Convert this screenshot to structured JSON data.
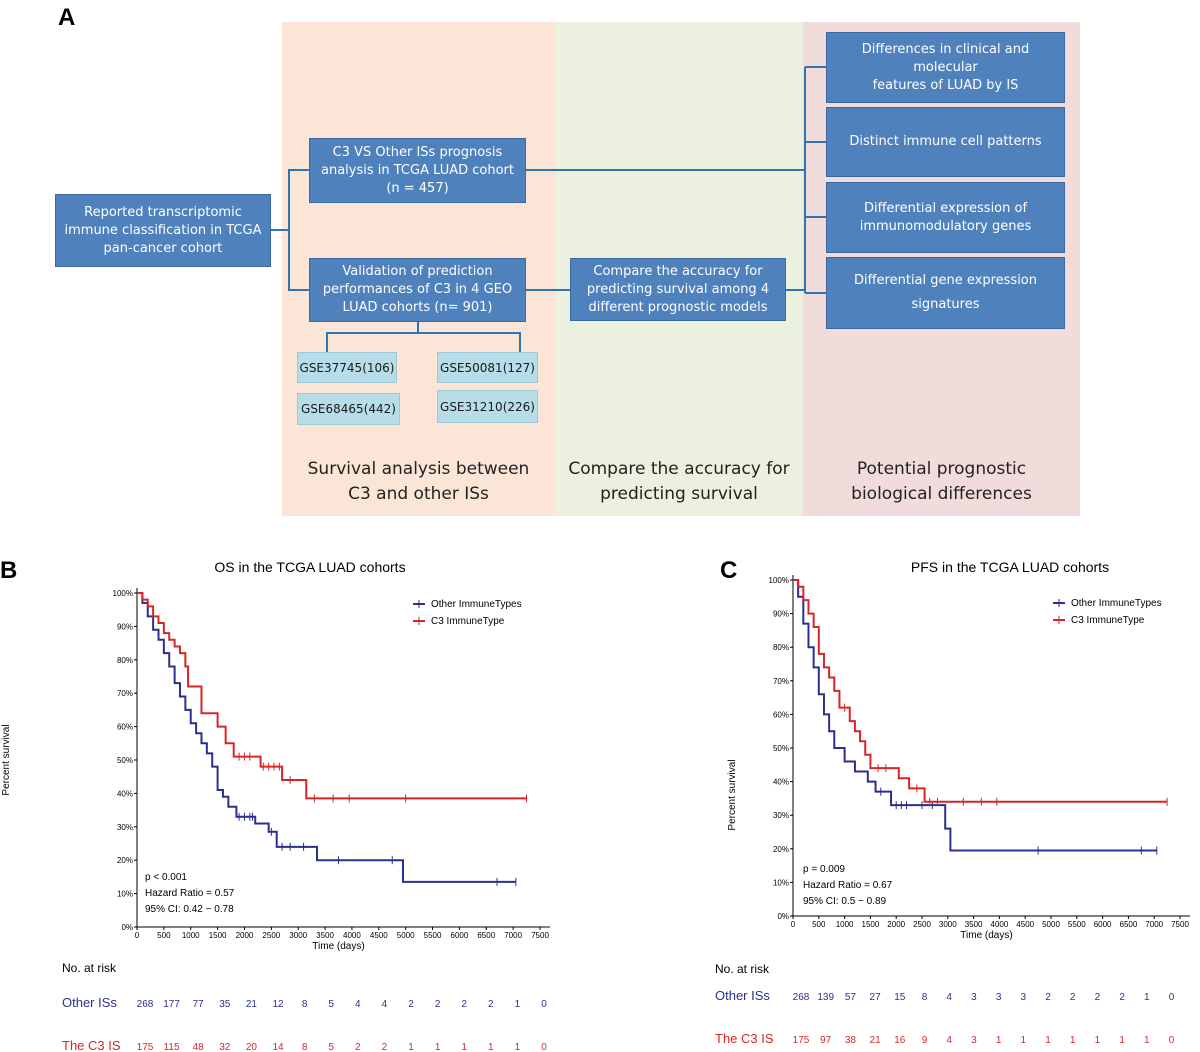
{
  "panel_a": {
    "letter": "A",
    "colors": {
      "survival_band": "#fbe5d6",
      "compare_band": "#ebf1de",
      "biology_band": "#f2dcdb",
      "box": "#4f81bd",
      "cohort_box": "#b7dee8",
      "connector": "#2e75b6"
    },
    "source_box": "Reported transcriptomic\nimmune classification in TCGA\npan-cancer cohort",
    "tcga_box": "C3 VS Other ISs prognosis\nanalysis in TCGA LUAD cohort\n(n = 457)",
    "validation_box": "Validation of prediction\nperformances of C3 in 4 GEO\nLUAD cohorts (n= 901)",
    "compare_box": "Compare the accuracy for\npredicting survival among 4\ndifferent prognostic models",
    "cohorts": [
      "GSE37745(106)",
      "GSE50081(127)",
      "GSE68465(442)",
      "GSE31210(226)"
    ],
    "outcomes": [
      "Differences in clinical and molecular\nfeatures of LUAD by IS",
      "Distinct immune cell patterns",
      "Differential expression of\nimmunomodulatory genes",
      "Differential gene expression\nsignatures"
    ],
    "band_labels": [
      "Survival analysis between\nC3 and other ISs",
      "Compare the accuracy for\npredicting survival",
      "Potential prognostic\nbiological differences"
    ]
  },
  "chart_data": [
    {
      "type": "line",
      "letter": "B",
      "title": "OS in the TCGA LUAD cohorts",
      "xlabel": "Time (days)",
      "ylabel": "Percent survival",
      "xlim": [
        0,
        7500
      ],
      "ylim": [
        0,
        100
      ],
      "xticks": [
        "0",
        "500",
        "1000",
        "1500",
        "2000",
        "2500",
        "3000",
        "3500",
        "4000",
        "4500",
        "5000",
        "5500",
        "6000",
        "6500",
        "7000",
        "7500"
      ],
      "yticks": [
        "0%",
        "10%",
        "20%",
        "30%",
        "40%",
        "50%",
        "60%",
        "70%",
        "80%",
        "90%",
        "100%"
      ],
      "legend": "top-right",
      "stats": [
        "p < 0.001",
        "Hazard Ratio = 0.57",
        "95% CI: 0.42 − 0.78"
      ],
      "series": [
        {
          "name": "Other ImmuneTypes",
          "color": "#2b2f8f",
          "steps": [
            [
              0,
              100
            ],
            [
              100,
              97
            ],
            [
              200,
              93
            ],
            [
              300,
              89
            ],
            [
              400,
              86
            ],
            [
              500,
              82
            ],
            [
              600,
              78
            ],
            [
              700,
              73
            ],
            [
              800,
              69
            ],
            [
              900,
              65
            ],
            [
              1000,
              61
            ],
            [
              1100,
              58
            ],
            [
              1200,
              55
            ],
            [
              1300,
              52
            ],
            [
              1400,
              48
            ],
            [
              1500,
              41
            ],
            [
              1600,
              39
            ],
            [
              1700,
              36
            ],
            [
              1850,
              33
            ],
            [
              2200,
              31
            ],
            [
              2450,
              28.5
            ],
            [
              2600,
              24
            ],
            [
              3350,
              20
            ],
            [
              4950,
              13.5
            ],
            [
              7050,
              13.5
            ]
          ],
          "censored": [
            1900,
            2000,
            2100,
            2150,
            2500,
            2700,
            2850,
            3100,
            3750,
            4750,
            6700,
            7050
          ]
        },
        {
          "name": "C3 ImmuneType",
          "color": "#d62728",
          "steps": [
            [
              0,
              100
            ],
            [
              100,
              98
            ],
            [
              200,
              96
            ],
            [
              300,
              93
            ],
            [
              400,
              91
            ],
            [
              500,
              88
            ],
            [
              600,
              86
            ],
            [
              700,
              84
            ],
            [
              800,
              82
            ],
            [
              900,
              78
            ],
            [
              950,
              72
            ],
            [
              1200,
              64
            ],
            [
              1500,
              60
            ],
            [
              1650,
              55
            ],
            [
              1800,
              51
            ],
            [
              2300,
              48
            ],
            [
              2700,
              44
            ],
            [
              3150,
              38.5
            ],
            [
              7250,
              38.5
            ]
          ],
          "censored": [
            1900,
            2000,
            2100,
            2350,
            2450,
            2550,
            2650,
            2850,
            3300,
            3650,
            3950,
            5000,
            7250
          ]
        }
      ],
      "risk_table": {
        "header": "No. at risk",
        "rows": [
          {
            "label": "Other ISs",
            "values": [
              268,
              177,
              77,
              35,
              21,
              12,
              8,
              5,
              4,
              4,
              2,
              2,
              2,
              2,
              1,
              0
            ]
          },
          {
            "label": "The C3 IS",
            "values": [
              175,
              115,
              48,
              32,
              20,
              14,
              8,
              5,
              2,
              2,
              1,
              1,
              1,
              1,
              1,
              0
            ]
          }
        ]
      }
    },
    {
      "type": "line",
      "letter": "C",
      "title": "PFS in the TCGA LUAD cohorts",
      "xlabel": "Time (days)",
      "ylabel": "Percent survival",
      "xlim": [
        0,
        7500
      ],
      "ylim": [
        0,
        100
      ],
      "xticks": [
        "0",
        "500",
        "1000",
        "1500",
        "2000",
        "2500",
        "3000",
        "3500",
        "4000",
        "4500",
        "5000",
        "5500",
        "6000",
        "6500",
        "7000",
        "7500"
      ],
      "yticks": [
        "0%",
        "10%",
        "20%",
        "30%",
        "40%",
        "50%",
        "60%",
        "70%",
        "80%",
        "90%",
        "100%"
      ],
      "legend": "top-right",
      "stats": [
        "p = 0.009",
        "Hazard Ratio = 0.67",
        "95% CI: 0.5 − 0.89"
      ],
      "series": [
        {
          "name": "Other ImmuneTypes",
          "color": "#2b2f8f",
          "steps": [
            [
              0,
              100
            ],
            [
              100,
              95
            ],
            [
              200,
              87
            ],
            [
              300,
              80
            ],
            [
              400,
              74
            ],
            [
              500,
              66
            ],
            [
              600,
              60
            ],
            [
              700,
              55
            ],
            [
              800,
              50
            ],
            [
              1000,
              46
            ],
            [
              1200,
              43
            ],
            [
              1450,
              40
            ],
            [
              1600,
              37
            ],
            [
              1900,
              33
            ],
            [
              2950,
              26
            ],
            [
              3050,
              19.5
            ],
            [
              7050,
              19.5
            ]
          ],
          "censored": [
            1700,
            2000,
            2100,
            2200,
            2500,
            2700,
            4750,
            6750,
            7050
          ]
        },
        {
          "name": "C3 ImmuneType",
          "color": "#d62728",
          "steps": [
            [
              0,
              100
            ],
            [
              100,
              98
            ],
            [
              200,
              94
            ],
            [
              300,
              90
            ],
            [
              400,
              86
            ],
            [
              500,
              78
            ],
            [
              600,
              74
            ],
            [
              700,
              71
            ],
            [
              800,
              67
            ],
            [
              900,
              62
            ],
            [
              1100,
              58
            ],
            [
              1200,
              55
            ],
            [
              1300,
              52
            ],
            [
              1400,
              48
            ],
            [
              1500,
              44
            ],
            [
              2050,
              41
            ],
            [
              2250,
              38
            ],
            [
              2550,
              34
            ],
            [
              7250,
              34
            ]
          ],
          "censored": [
            1000,
            1650,
            1800,
            2400,
            2650,
            2800,
            3300,
            3650,
            3950,
            7250
          ]
        }
      ],
      "risk_table": {
        "header": "No. at risk",
        "rows": [
          {
            "label": "Other ISs",
            "values": [
              268,
              139,
              57,
              27,
              15,
              8,
              4,
              3,
              3,
              3,
              2,
              2,
              2,
              2,
              1,
              0
            ]
          },
          {
            "label": "The C3 IS",
            "values": [
              175,
              97,
              38,
              21,
              16,
              9,
              4,
              3,
              1,
              1,
              1,
              1,
              1,
              1,
              1,
              0
            ]
          }
        ]
      }
    }
  ]
}
